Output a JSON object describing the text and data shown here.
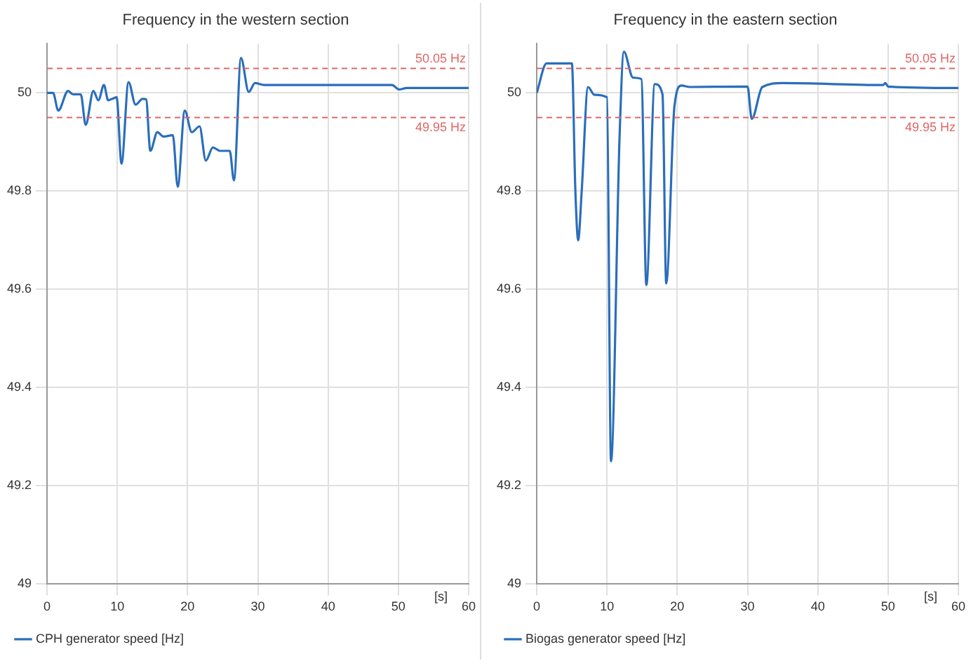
{
  "chart_data": [
    {
      "type": "line",
      "title": "Frequency in the western section",
      "xlabel": "[s]",
      "xlim": [
        0,
        60
      ],
      "xticks": [
        0,
        10,
        20,
        30,
        40,
        50,
        60
      ],
      "ylim": [
        49,
        50.1
      ],
      "yticks": [
        49,
        49.2,
        49.4,
        49.6,
        49.8,
        50
      ],
      "grid": true,
      "legend": "bottom left",
      "ref_lines": [
        {
          "axis": "y",
          "value": 50.05,
          "label": "50.05 Hz",
          "color": "#e06666",
          "line_style": "dashed"
        },
        {
          "axis": "y",
          "value": 49.95,
          "label": "49.95 Hz",
          "color": "#e06666",
          "line_style": "dashed"
        }
      ],
      "series": [
        {
          "name": "CPH generator speed [Hz]",
          "color": "#2a6ebb",
          "x": [
            0,
            0.86,
            1.6,
            3.0,
            3.7,
            4.8,
            5.5,
            6.6,
            7.3,
            8.1,
            8.7,
            9.3,
            9.9,
            10.6,
            11.6,
            12.6,
            13.6,
            14.1,
            14.7,
            15.7,
            16.6,
            17.9,
            18.6,
            19.6,
            20.6,
            21.7,
            22.6,
            23.6,
            24.6,
            26.0,
            26.6,
            27.6,
            28.7,
            29.6,
            30.9,
            49.1,
            50.1,
            51.2,
            60
          ],
          "values": [
            50.0,
            50.0,
            49.964,
            50.004,
            49.997,
            49.997,
            49.935,
            50.004,
            49.985,
            50.016,
            49.985,
            49.988,
            49.991,
            49.856,
            50.022,
            49.976,
            49.988,
            49.987,
            49.882,
            49.92,
            49.911,
            49.914,
            49.809,
            49.964,
            49.92,
            49.932,
            49.862,
            49.889,
            49.882,
            49.882,
            49.822,
            50.071,
            50.002,
            50.02,
            50.016,
            50.016,
            50.007,
            50.01,
            50.01
          ]
        }
      ]
    },
    {
      "type": "line",
      "title": "Frequency in the eastern section",
      "xlabel": "[s]",
      "xlim": [
        0,
        60
      ],
      "xticks": [
        0,
        10,
        20,
        30,
        40,
        50,
        60
      ],
      "ylim": [
        49,
        50.1
      ],
      "yticks": [
        49,
        49.2,
        49.4,
        49.6,
        49.8,
        50
      ],
      "grid": true,
      "legend": "bottom left",
      "ref_lines": [
        {
          "axis": "y",
          "value": 50.05,
          "label": "50.05 Hz",
          "color": "#e06666",
          "line_style": "dashed"
        },
        {
          "axis": "y",
          "value": 49.95,
          "label": "49.95 Hz",
          "color": "#e06666",
          "line_style": "dashed"
        }
      ],
      "series": [
        {
          "name": "Biogas generator speed [Hz]",
          "color": "#2a6ebb",
          "x": [
            0,
            1.4,
            5.0,
            5.5,
            5.9,
            6.4,
            7.3,
            8.2,
            10.0,
            10.57,
            11.8,
            12.4,
            13.7,
            14.9,
            15.6,
            16.8,
            17.9,
            18.43,
            19.6,
            20.6,
            21.8,
            30.0,
            30.6,
            32.1,
            35,
            49.3,
            49.6,
            50,
            60
          ],
          "values": [
            50.0,
            50.06,
            50.06,
            49.8,
            49.7,
            49.8,
            50.012,
            49.996,
            49.991,
            49.25,
            49.916,
            50.084,
            50.031,
            50.028,
            49.609,
            50.018,
            49.997,
            49.612,
            49.973,
            50.015,
            50.012,
            50.013,
            49.947,
            50.012,
            50.02,
            50.016,
            50.02,
            50.013,
            50.01
          ]
        }
      ]
    }
  ]
}
